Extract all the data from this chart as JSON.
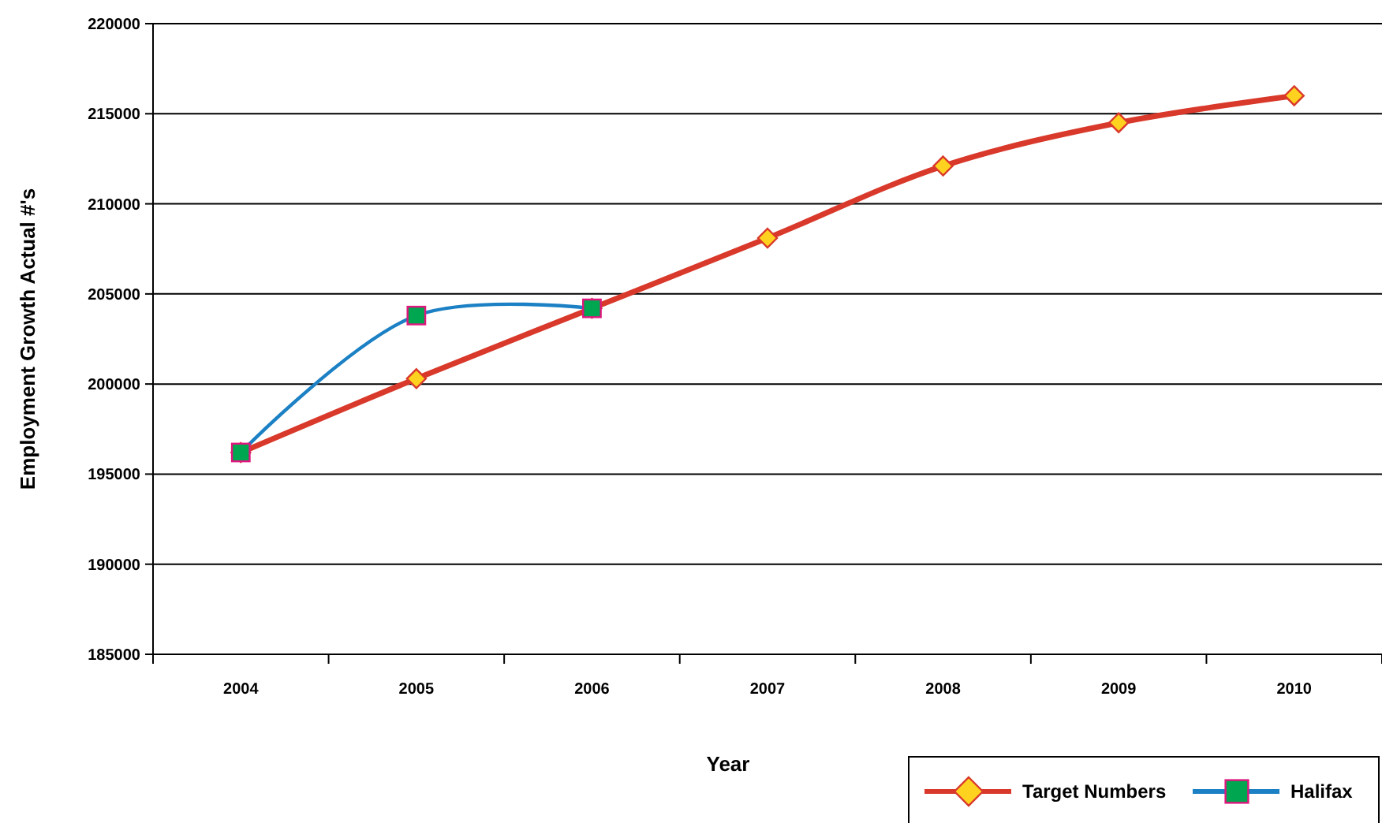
{
  "chart_data": {
    "type": "line",
    "xlabel": "Year",
    "ylabel": "Employment Growth Actual #'s",
    "categories": [
      "2004",
      "2005",
      "2006",
      "2007",
      "2008",
      "2009",
      "2010"
    ],
    "ylim": [
      185000,
      220000
    ],
    "yticks": [
      185000,
      190000,
      195000,
      200000,
      205000,
      210000,
      215000,
      220000
    ],
    "grid": "y",
    "legend": "bottom right",
    "series": [
      {
        "name": "Target Numbers",
        "color": "#d9392b",
        "marker": "diamond",
        "values": [
          196200,
          200300,
          204200,
          208100,
          212100,
          214500,
          216000
        ]
      },
      {
        "name": "Halifax",
        "color": "#1b80c4",
        "marker": "square",
        "values": [
          196200,
          203800,
          204200,
          null,
          null,
          null,
          null
        ]
      }
    ]
  }
}
